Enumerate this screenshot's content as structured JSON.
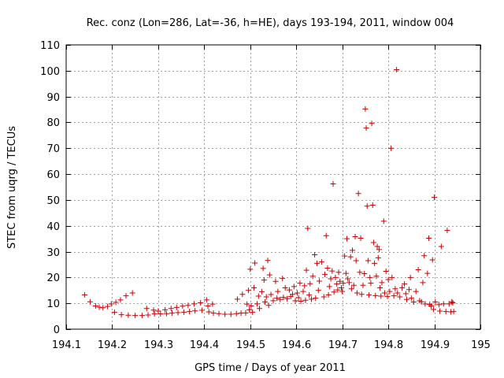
{
  "chart_data": {
    "type": "scatter",
    "title": "Rec. conz (Lon=286, Lat=-36, h=HE), days 193-194, 2011, window 004",
    "xlabel": "GPS time / Days of year 2011",
    "ylabel": "STEC from uqrg / TECUs",
    "xlim": [
      194.1,
      195
    ],
    "ylim": [
      0,
      110
    ],
    "xticks": [
      194.1,
      194.2,
      194.3,
      194.4,
      194.5,
      194.6,
      194.7,
      194.8,
      194.9,
      195
    ],
    "xtick_labels": [
      "194.1",
      "194.2",
      "194.3",
      "194.4",
      "194.5",
      "194.6",
      "194.7",
      "194.8",
      "194.9",
      "195"
    ],
    "yticks": [
      0,
      10,
      20,
      30,
      40,
      50,
      60,
      70,
      80,
      90,
      100,
      110
    ],
    "ytick_labels": [
      "0",
      "10",
      "20",
      "30",
      "40",
      "50",
      "60",
      "70",
      "80",
      "90",
      "100",
      "110"
    ],
    "grid": true,
    "marker": "plus",
    "marker_color": "#cc0000",
    "grid_color": "#a0a0a0",
    "series": [
      {
        "name": "STEC",
        "points": [
          [
            194.14,
            13.3
          ],
          [
            194.152,
            10.6
          ],
          [
            194.164,
            9.0
          ],
          [
            194.172,
            8.5
          ],
          [
            194.18,
            8.3
          ],
          [
            194.19,
            8.8
          ],
          [
            194.198,
            9.8
          ],
          [
            194.205,
            6.5
          ],
          [
            194.208,
            10.4
          ],
          [
            194.218,
            11.3
          ],
          [
            194.22,
            5.6
          ],
          [
            194.23,
            12.9
          ],
          [
            194.235,
            5.4
          ],
          [
            194.244,
            14.0
          ],
          [
            194.25,
            5.3
          ],
          [
            194.265,
            5.3
          ],
          [
            194.275,
            8.0
          ],
          [
            194.278,
            5.5
          ],
          [
            194.29,
            7.4
          ],
          [
            194.292,
            5.9
          ],
          [
            194.3,
            7.0
          ],
          [
            194.305,
            5.9
          ],
          [
            194.315,
            7.5
          ],
          [
            194.318,
            6.0
          ],
          [
            194.328,
            8.0
          ],
          [
            194.33,
            6.2
          ],
          [
            194.34,
            8.4
          ],
          [
            194.343,
            6.4
          ],
          [
            194.353,
            8.9
          ],
          [
            194.356,
            6.6
          ],
          [
            194.365,
            9.2
          ],
          [
            194.368,
            6.8
          ],
          [
            194.378,
            9.8
          ],
          [
            194.38,
            7.1
          ],
          [
            194.392,
            10.2
          ],
          [
            194.395,
            7.3
          ],
          [
            194.405,
            11.3
          ],
          [
            194.408,
            9.0
          ],
          [
            194.41,
            6.7
          ],
          [
            194.418,
            9.7
          ],
          [
            194.42,
            6.2
          ],
          [
            194.432,
            6.0
          ],
          [
            194.445,
            5.8
          ],
          [
            194.458,
            5.8
          ],
          [
            194.47,
            6.0
          ],
          [
            194.472,
            11.6
          ],
          [
            194.48,
            6.2
          ],
          [
            194.483,
            13.5
          ],
          [
            194.49,
            6.3
          ],
          [
            194.493,
            9.7
          ],
          [
            194.496,
            15.0
          ],
          [
            194.498,
            7.5
          ],
          [
            194.5,
            23.2
          ],
          [
            194.502,
            9.0
          ],
          [
            194.505,
            6.6
          ],
          [
            194.508,
            16.0
          ],
          [
            194.51,
            25.6
          ],
          [
            194.515,
            9.8
          ],
          [
            194.518,
            12.8
          ],
          [
            194.52,
            8.0
          ],
          [
            194.525,
            14.5
          ],
          [
            194.528,
            23.5
          ],
          [
            194.53,
            19.0
          ],
          [
            194.532,
            10.5
          ],
          [
            194.535,
            12.5
          ],
          [
            194.538,
            26.6
          ],
          [
            194.54,
            9.2
          ],
          [
            194.542,
            21.0
          ],
          [
            194.545,
            13.4
          ],
          [
            194.55,
            11.0
          ],
          [
            194.555,
            18.5
          ],
          [
            194.558,
            12.0
          ],
          [
            194.56,
            14.6
          ],
          [
            194.565,
            11.5
          ],
          [
            194.57,
            19.6
          ],
          [
            194.572,
            12.3
          ],
          [
            194.576,
            16.0
          ],
          [
            194.58,
            11.8
          ],
          [
            194.585,
            15.2
          ],
          [
            194.588,
            12.6
          ],
          [
            194.592,
            13.5
          ],
          [
            194.595,
            16.5
          ],
          [
            194.598,
            11.0
          ],
          [
            194.602,
            14.0
          ],
          [
            194.605,
            12.2
          ],
          [
            194.608,
            17.8
          ],
          [
            194.61,
            10.8
          ],
          [
            194.615,
            14.6
          ],
          [
            194.618,
            16.8
          ],
          [
            194.62,
            11.2
          ],
          [
            194.622,
            22.8
          ],
          [
            194.625,
            39.0
          ],
          [
            194.628,
            13.2
          ],
          [
            194.63,
            17.6
          ],
          [
            194.633,
            11.6
          ],
          [
            194.636,
            20.5
          ],
          [
            194.64,
            28.8
          ],
          [
            194.642,
            12.0
          ],
          [
            194.645,
            25.5
          ],
          [
            194.648,
            15.0
          ],
          [
            194.65,
            18.6
          ],
          [
            194.655,
            26.0
          ],
          [
            194.66,
            12.5
          ],
          [
            194.662,
            21.2
          ],
          [
            194.665,
            36.2
          ],
          [
            194.668,
            23.6
          ],
          [
            194.67,
            13.3
          ],
          [
            194.672,
            16.5
          ],
          [
            194.675,
            19.5
          ],
          [
            194.678,
            22.5
          ],
          [
            194.68,
            56.2
          ],
          [
            194.682,
            14.4
          ],
          [
            194.685,
            20.0
          ],
          [
            194.688,
            17.5
          ],
          [
            194.69,
            15.2
          ],
          [
            194.692,
            22.0
          ],
          [
            194.695,
            18.5
          ],
          [
            194.698,
            16.0
          ],
          [
            194.7,
            14.6
          ],
          [
            194.702,
            17.8
          ],
          [
            194.705,
            28.3
          ],
          [
            194.708,
            21.6
          ],
          [
            194.71,
            35.0
          ],
          [
            194.712,
            19.5
          ],
          [
            194.715,
            18.0
          ],
          [
            194.718,
            28.0
          ],
          [
            194.72,
            15.6
          ],
          [
            194.722,
            30.5
          ],
          [
            194.725,
            17.0
          ],
          [
            194.728,
            35.8
          ],
          [
            194.73,
            26.5
          ],
          [
            194.732,
            14.0
          ],
          [
            194.735,
            52.5
          ],
          [
            194.738,
            22.0
          ],
          [
            194.74,
            35.2
          ],
          [
            194.742,
            13.5
          ],
          [
            194.745,
            17.0
          ],
          [
            194.748,
            21.5
          ],
          [
            194.75,
            85.2
          ],
          [
            194.752,
            77.8
          ],
          [
            194.754,
            47.6
          ],
          [
            194.756,
            26.5
          ],
          [
            194.758,
            13.2
          ],
          [
            194.76,
            20.0
          ],
          [
            194.762,
            17.8
          ],
          [
            194.764,
            79.6
          ],
          [
            194.766,
            48.0
          ],
          [
            194.768,
            33.5
          ],
          [
            194.77,
            25.5
          ],
          [
            194.772,
            13.0
          ],
          [
            194.774,
            20.5
          ],
          [
            194.776,
            32.0
          ],
          [
            194.778,
            27.6
          ],
          [
            194.78,
            30.8
          ],
          [
            194.782,
            16.0
          ],
          [
            194.784,
            12.8
          ],
          [
            194.786,
            18.0
          ],
          [
            194.79,
            41.8
          ],
          [
            194.792,
            14.0
          ],
          [
            194.795,
            22.4
          ],
          [
            194.798,
            12.7
          ],
          [
            194.8,
            19.2
          ],
          [
            194.803,
            14.6
          ],
          [
            194.806,
            70.0
          ],
          [
            194.808,
            20.0
          ],
          [
            194.812,
            12.9
          ],
          [
            194.815,
            15.6
          ],
          [
            194.818,
            100.4
          ],
          [
            194.82,
            14.0
          ],
          [
            194.825,
            12.5
          ],
          [
            194.83,
            16.0
          ],
          [
            194.835,
            17.5
          ],
          [
            194.838,
            13.7
          ],
          [
            194.84,
            11.5
          ],
          [
            194.845,
            15.3
          ],
          [
            194.848,
            20.0
          ],
          [
            194.85,
            12.0
          ],
          [
            194.855,
            10.5
          ],
          [
            194.86,
            14.6
          ],
          [
            194.865,
            23.0
          ],
          [
            194.868,
            11.0
          ],
          [
            194.872,
            10.6
          ],
          [
            194.875,
            18.0
          ],
          [
            194.878,
            28.4
          ],
          [
            194.88,
            9.8
          ],
          [
            194.885,
            21.6
          ],
          [
            194.888,
            35.2
          ],
          [
            194.89,
            9.6
          ],
          [
            194.893,
            9.0
          ],
          [
            194.896,
            26.8
          ],
          [
            194.898,
            7.6
          ],
          [
            194.9,
            51.0
          ],
          [
            194.902,
            10.5
          ],
          [
            194.91,
            9.5
          ],
          [
            194.912,
            7.0
          ],
          [
            194.915,
            32.0
          ],
          [
            194.92,
            9.8
          ],
          [
            194.925,
            6.8
          ],
          [
            194.928,
            38.2
          ],
          [
            194.932,
            9.8
          ],
          [
            194.936,
            6.7
          ],
          [
            194.938,
            10.6
          ],
          [
            194.94,
            10.2
          ],
          [
            194.942,
            6.8
          ]
        ]
      }
    ]
  }
}
